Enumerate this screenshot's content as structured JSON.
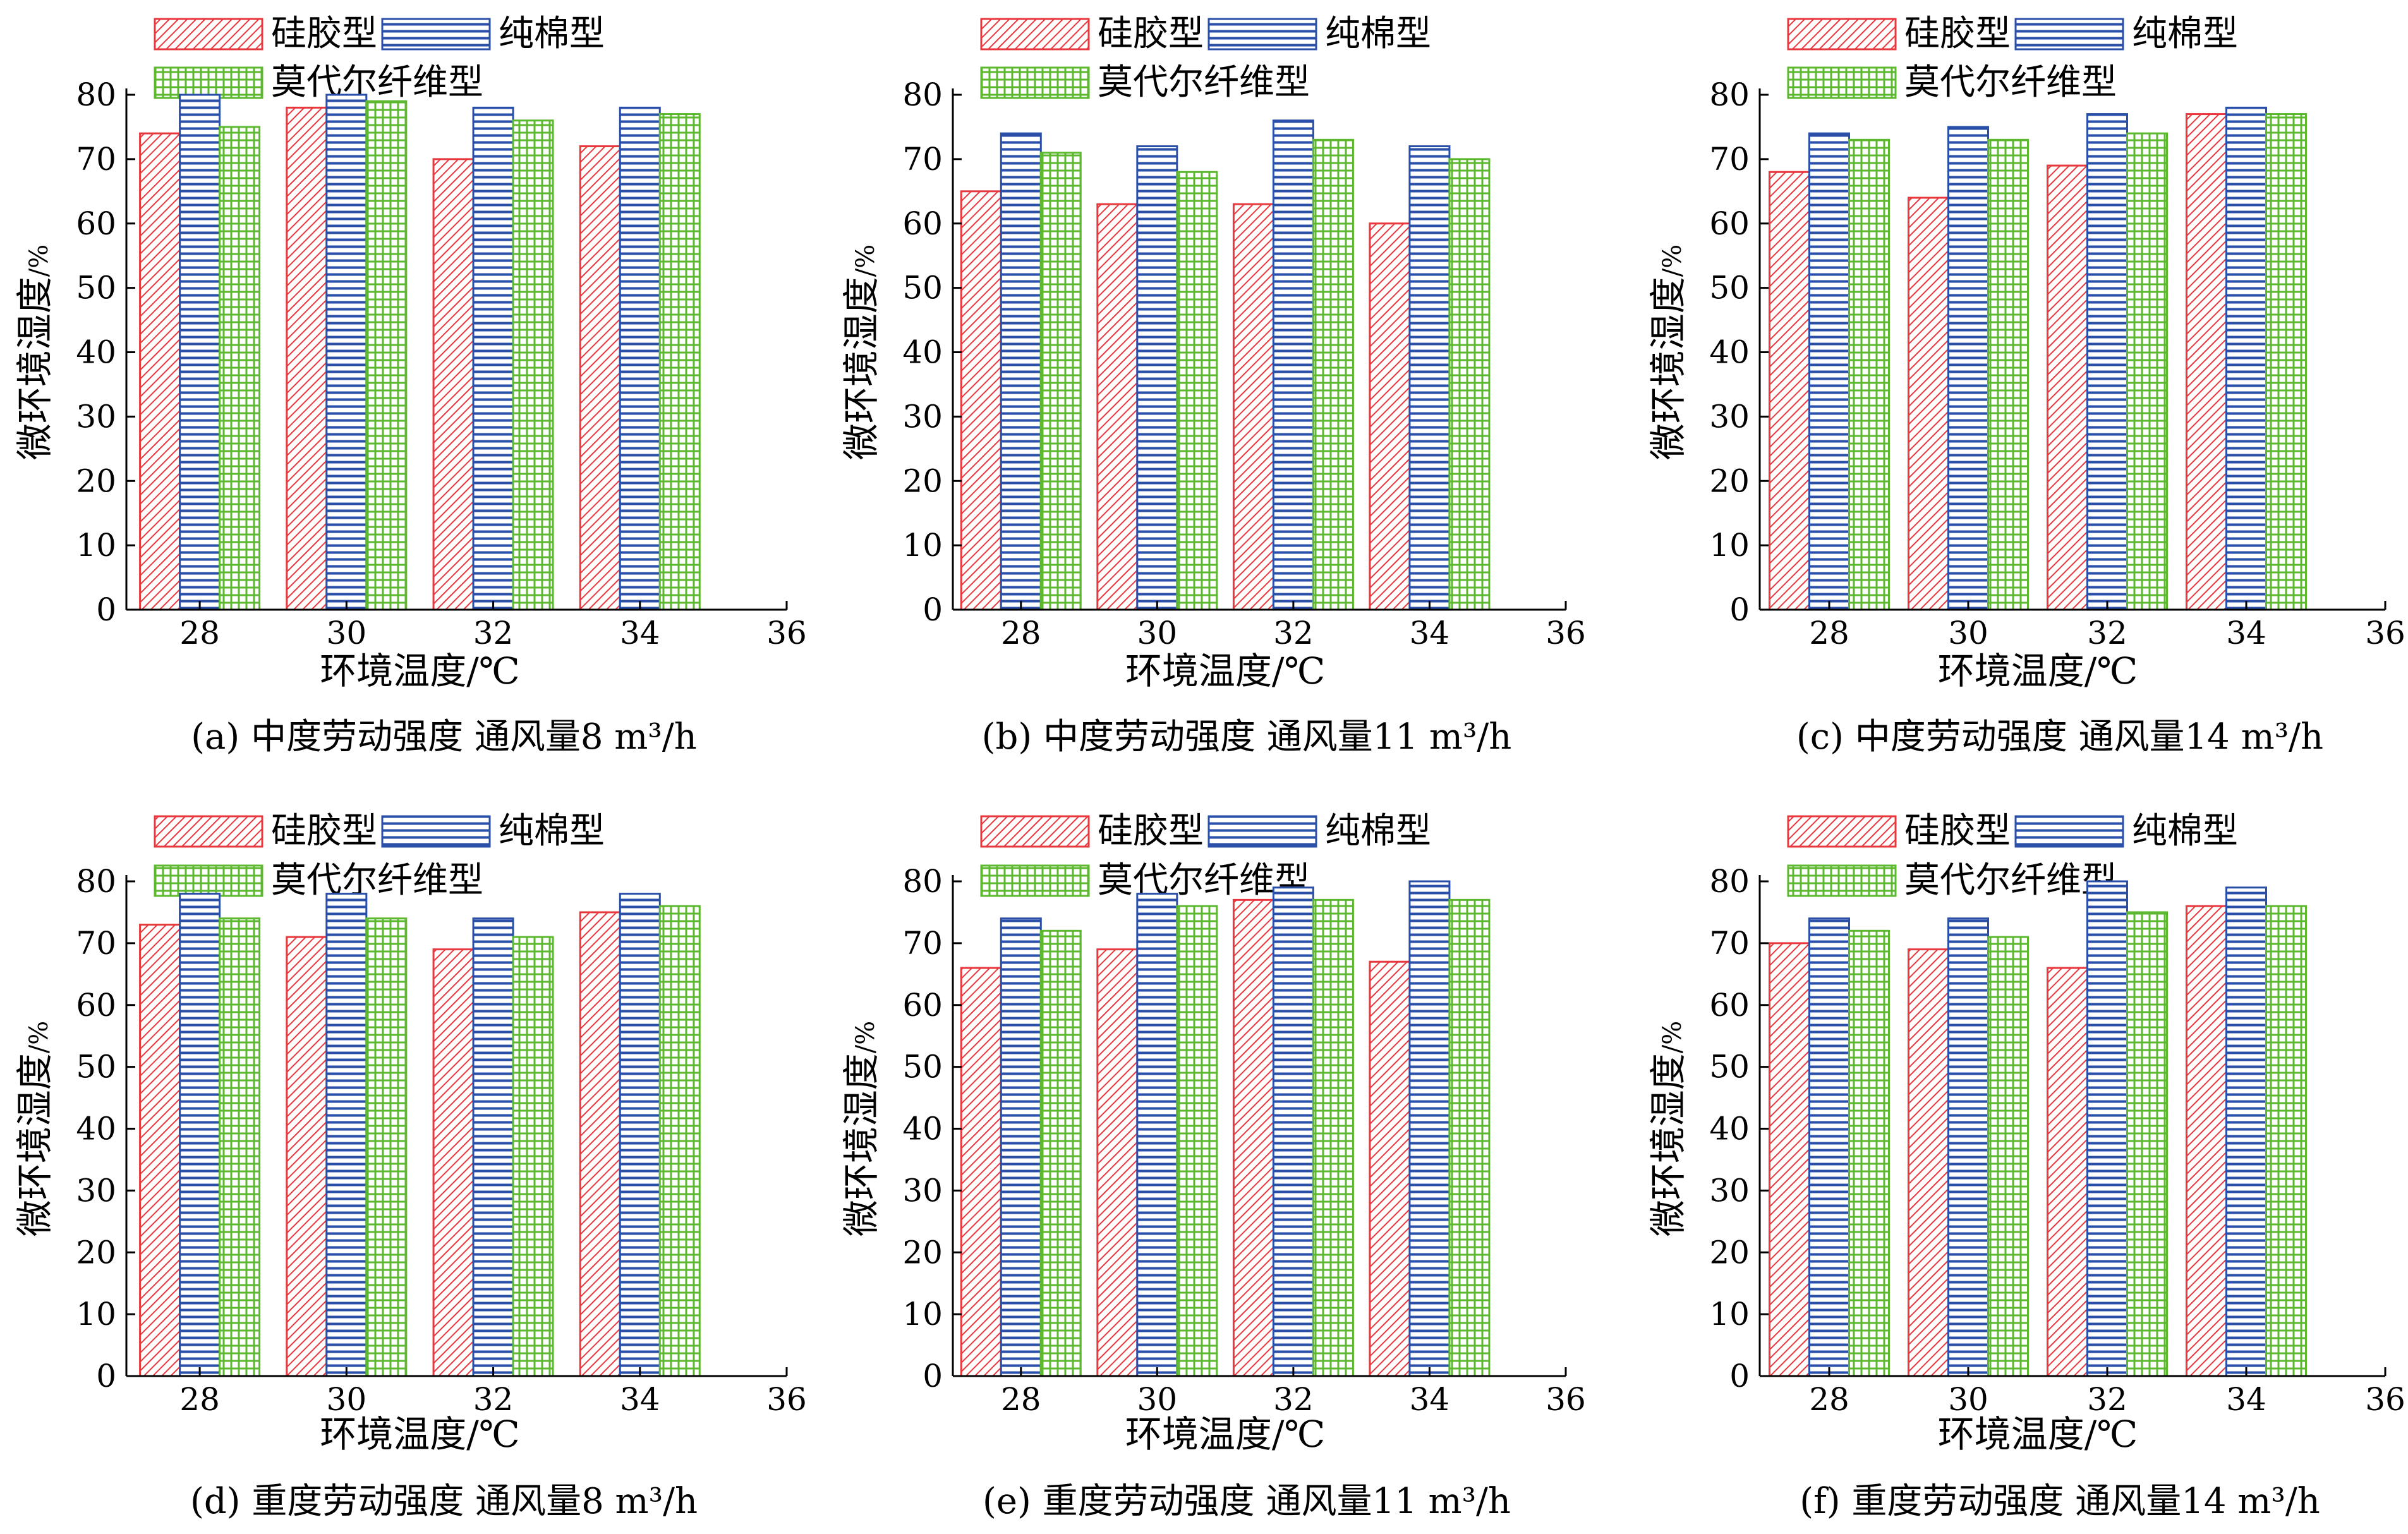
{
  "legend": {
    "silicone": "硅胶型",
    "cotton": "纯棉型",
    "modal": "莫代尔纤维型"
  },
  "axes": {
    "ylabel": "微环境湿度",
    "yunit": "/%",
    "xlabel": "环境温度/℃"
  },
  "colors": {
    "silicone": "#e8383d",
    "cotton": "#2a4fa8",
    "modal": "#5cb82e",
    "axis": "#000000"
  },
  "chart_data": [
    {
      "type": "bar",
      "caption": "(a) 中度劳动强度 通风量8 m³/h",
      "xticks": [
        "28",
        "30",
        "32",
        "34",
        "36"
      ],
      "yticks": [
        "0",
        "10",
        "20",
        "30",
        "40",
        "50",
        "60",
        "70",
        "80"
      ],
      "xlim": [
        27,
        36
      ],
      "ylim": [
        0,
        80
      ],
      "categories": [
        "28",
        "30",
        "32",
        "34"
      ],
      "series": [
        {
          "name": "硅胶型",
          "values": [
            74,
            78,
            70,
            72
          ]
        },
        {
          "name": "纯棉型",
          "values": [
            80,
            80,
            78,
            78
          ]
        },
        {
          "name": "莫代尔纤维型",
          "values": [
            75,
            79,
            76,
            77
          ]
        }
      ]
    },
    {
      "type": "bar",
      "caption": "(b) 中度劳动强度 通风量11 m³/h",
      "xticks": [
        "28",
        "30",
        "32",
        "34",
        "36"
      ],
      "yticks": [
        "0",
        "10",
        "20",
        "30",
        "40",
        "50",
        "60",
        "70",
        "80"
      ],
      "xlim": [
        27,
        36
      ],
      "ylim": [
        0,
        80
      ],
      "categories": [
        "28",
        "30",
        "32",
        "34"
      ],
      "series": [
        {
          "name": "硅胶型",
          "values": [
            65,
            63,
            63,
            60
          ]
        },
        {
          "name": "纯棉型",
          "values": [
            74,
            72,
            76,
            72
          ]
        },
        {
          "name": "莫代尔纤维型",
          "values": [
            71,
            68,
            73,
            70
          ]
        }
      ]
    },
    {
      "type": "bar",
      "caption": "(c) 中度劳动强度 通风量14 m³/h",
      "xticks": [
        "28",
        "30",
        "32",
        "34",
        "36"
      ],
      "yticks": [
        "0",
        "10",
        "20",
        "30",
        "40",
        "50",
        "60",
        "70",
        "80"
      ],
      "xlim": [
        27,
        36
      ],
      "ylim": [
        0,
        80
      ],
      "categories": [
        "28",
        "30",
        "32",
        "34"
      ],
      "series": [
        {
          "name": "硅胶型",
          "values": [
            68,
            64,
            69,
            77
          ]
        },
        {
          "name": "纯棉型",
          "values": [
            74,
            75,
            77,
            78
          ]
        },
        {
          "name": "莫代尔纤维型",
          "values": [
            73,
            73,
            74,
            77
          ]
        }
      ]
    },
    {
      "type": "bar",
      "caption": "(d) 重度劳动强度  通风量8 m³/h",
      "xticks": [
        "28",
        "30",
        "32",
        "34",
        "36"
      ],
      "yticks": [
        "0",
        "10",
        "20",
        "30",
        "40",
        "50",
        "60",
        "70",
        "80"
      ],
      "xlim": [
        27,
        36
      ],
      "ylim": [
        0,
        80
      ],
      "categories": [
        "28",
        "30",
        "32",
        "34"
      ],
      "series": [
        {
          "name": "硅胶型",
          "values": [
            73,
            71,
            69,
            75
          ]
        },
        {
          "name": "纯棉型",
          "values": [
            78,
            78,
            74,
            78
          ]
        },
        {
          "name": "莫代尔纤维型",
          "values": [
            74,
            74,
            71,
            76
          ]
        }
      ]
    },
    {
      "type": "bar",
      "caption": "(e) 重度劳动强度  通风量11 m³/h",
      "xticks": [
        "28",
        "30",
        "32",
        "34",
        "36"
      ],
      "yticks": [
        "0",
        "10",
        "20",
        "30",
        "40",
        "50",
        "60",
        "70",
        "80"
      ],
      "xlim": [
        27,
        36
      ],
      "ylim": [
        0,
        80
      ],
      "categories": [
        "28",
        "30",
        "32",
        "34"
      ],
      "series": [
        {
          "name": "硅胶型",
          "values": [
            66,
            69,
            77,
            67
          ]
        },
        {
          "name": "纯棉型",
          "values": [
            74,
            78,
            79,
            80
          ]
        },
        {
          "name": "莫代尔纤维型",
          "values": [
            72,
            76,
            77,
            77
          ]
        }
      ]
    },
    {
      "type": "bar",
      "caption": "(f) 重度劳动强度  通风量14 m³/h",
      "xticks": [
        "28",
        "30",
        "32",
        "34",
        "36"
      ],
      "yticks": [
        "0",
        "10",
        "20",
        "30",
        "40",
        "50",
        "60",
        "70",
        "80"
      ],
      "xlim": [
        27,
        36
      ],
      "ylim": [
        0,
        80
      ],
      "categories": [
        "28",
        "30",
        "32",
        "34"
      ],
      "series": [
        {
          "name": "硅胶型",
          "values": [
            70,
            69,
            66,
            76
          ]
        },
        {
          "name": "纯棉型",
          "values": [
            74,
            74,
            80,
            79
          ]
        },
        {
          "name": "莫代尔纤维型",
          "values": [
            72,
            71,
            75,
            76
          ]
        }
      ]
    }
  ]
}
